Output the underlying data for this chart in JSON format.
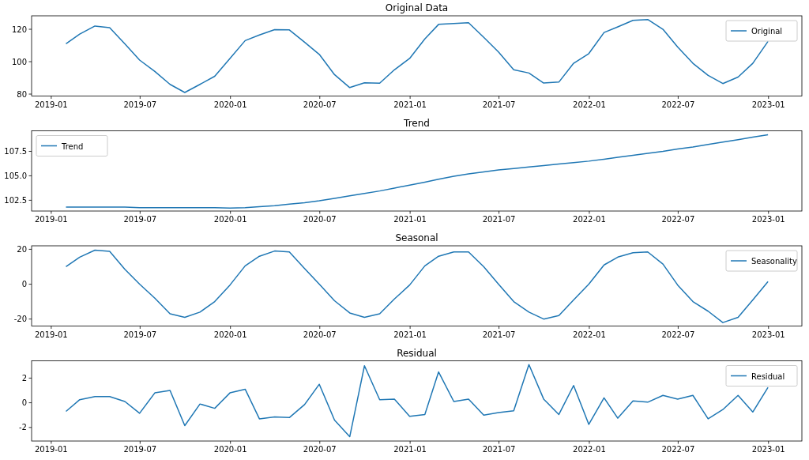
{
  "chart_data": [
    {
      "type": "line",
      "title": "Original Data",
      "x": [
        "2019-01-31",
        "2019-02-28",
        "2019-03-31",
        "2019-04-30",
        "2019-05-31",
        "2019-06-30",
        "2019-07-31",
        "2019-08-31",
        "2019-09-30",
        "2019-10-31",
        "2019-11-30",
        "2019-12-31",
        "2020-01-31",
        "2020-02-29",
        "2020-03-31",
        "2020-04-30",
        "2020-05-31",
        "2020-06-30",
        "2020-07-31",
        "2020-08-31",
        "2020-09-30",
        "2020-10-31",
        "2020-11-30",
        "2020-12-31",
        "2021-01-31",
        "2021-02-28",
        "2021-03-31",
        "2021-04-30",
        "2021-05-31",
        "2021-06-30",
        "2021-07-31",
        "2021-08-31",
        "2021-09-30",
        "2021-10-31",
        "2021-11-30",
        "2021-12-31",
        "2022-01-31",
        "2022-02-28",
        "2022-03-31",
        "2022-04-30",
        "2022-05-31",
        "2022-06-30",
        "2022-07-31",
        "2022-08-31",
        "2022-09-30",
        "2022-10-31",
        "2022-11-30",
        "2022-12-31"
      ],
      "series": [
        {
          "name": "Original",
          "color": "#1f77b4",
          "values": [
            111,
            117,
            122,
            121,
            111,
            101,
            94,
            86,
            81,
            86,
            91,
            102,
            113,
            116.5,
            119.8,
            119.6,
            112,
            104.5,
            92,
            84,
            87,
            86.7,
            95,
            102,
            114,
            123,
            123.5,
            124,
            115,
            106,
            95,
            93,
            86.8,
            87.4,
            99,
            105,
            118,
            121.5,
            125.5,
            126,
            120,
            109,
            99,
            91.5,
            86.5,
            90.5,
            99,
            112.5
          ]
        }
      ],
      "xlim": [
        "2018-11-22",
        "2023-03-10"
      ],
      "xticks": [
        {
          "value": "2019-01",
          "label": "2019-01"
        },
        {
          "value": "2019-07",
          "label": "2019-07"
        },
        {
          "value": "2020-01",
          "label": "2020-01"
        },
        {
          "value": "2020-07",
          "label": "2020-07"
        },
        {
          "value": "2021-01",
          "label": "2021-01"
        },
        {
          "value": "2021-07",
          "label": "2021-07"
        },
        {
          "value": "2022-01",
          "label": "2022-01"
        },
        {
          "value": "2022-07",
          "label": "2022-07"
        },
        {
          "value": "2023-01",
          "label": "2023-01"
        }
      ],
      "ylim": [
        78.8,
        128.3
      ],
      "yticks": [
        80,
        100,
        120
      ],
      "legend": "top right",
      "grid": false
    },
    {
      "type": "line",
      "title": "Trend",
      "x": [
        "2019-01-31",
        "2019-02-28",
        "2019-03-31",
        "2019-04-30",
        "2019-05-31",
        "2019-06-30",
        "2019-07-31",
        "2019-08-31",
        "2019-09-30",
        "2019-10-31",
        "2019-11-30",
        "2019-12-31",
        "2020-01-31",
        "2020-02-29",
        "2020-03-31",
        "2020-04-30",
        "2020-05-31",
        "2020-06-30",
        "2020-07-31",
        "2020-08-31",
        "2020-09-30",
        "2020-10-31",
        "2020-11-30",
        "2020-12-31",
        "2021-01-31",
        "2021-02-28",
        "2021-03-31",
        "2021-04-30",
        "2021-05-31",
        "2021-06-30",
        "2021-07-31",
        "2021-08-31",
        "2021-09-30",
        "2021-10-31",
        "2021-11-30",
        "2021-12-31",
        "2022-01-31",
        "2022-02-28",
        "2022-03-31",
        "2022-04-30",
        "2022-05-31",
        "2022-06-30",
        "2022-07-31",
        "2022-08-31",
        "2022-09-30",
        "2022-10-31",
        "2022-11-30",
        "2022-12-31"
      ],
      "series": [
        {
          "name": "Trend",
          "color": "#1f77b4",
          "values": [
            101.8,
            101.8,
            101.8,
            101.8,
            101.8,
            101.75,
            101.75,
            101.75,
            101.75,
            101.75,
            101.75,
            101.7,
            101.75,
            101.85,
            101.95,
            102.1,
            102.25,
            102.45,
            102.7,
            102.95,
            103.2,
            103.45,
            103.75,
            104.05,
            104.35,
            104.65,
            104.95,
            105.2,
            105.4,
            105.6,
            105.75,
            105.9,
            106.05,
            106.2,
            106.35,
            106.5,
            106.7,
            106.9,
            107.1,
            107.3,
            107.5,
            107.75,
            107.95,
            108.2,
            108.45,
            108.7,
            108.95,
            109.2
          ]
        }
      ],
      "xlim": [
        "2018-11-22",
        "2023-03-10"
      ],
      "xticks": [
        {
          "value": "2019-01",
          "label": "2019-01"
        },
        {
          "value": "2019-07",
          "label": "2019-07"
        },
        {
          "value": "2020-01",
          "label": "2020-01"
        },
        {
          "value": "2020-07",
          "label": "2020-07"
        },
        {
          "value": "2021-01",
          "label": "2021-01"
        },
        {
          "value": "2021-07",
          "label": "2021-07"
        },
        {
          "value": "2022-01",
          "label": "2022-01"
        },
        {
          "value": "2022-07",
          "label": "2022-07"
        },
        {
          "value": "2023-01",
          "label": "2023-01"
        }
      ],
      "ylim": [
        101.4,
        109.6
      ],
      "yticks": [
        {
          "value": 102.5,
          "label": "102.5"
        },
        {
          "value": 105,
          "label": "105.0"
        },
        {
          "value": 107.5,
          "label": "107.5"
        }
      ],
      "legend": "top left",
      "grid": false
    },
    {
      "type": "line",
      "title": "Seasonal",
      "x": [
        "2019-01-31",
        "2019-02-28",
        "2019-03-31",
        "2019-04-30",
        "2019-05-31",
        "2019-06-30",
        "2019-07-31",
        "2019-08-31",
        "2019-09-30",
        "2019-10-31",
        "2019-11-30",
        "2019-12-31",
        "2020-01-31",
        "2020-02-29",
        "2020-03-31",
        "2020-04-30",
        "2020-05-31",
        "2020-06-30",
        "2020-07-31",
        "2020-08-31",
        "2020-09-30",
        "2020-10-31",
        "2020-11-30",
        "2020-12-31",
        "2021-01-31",
        "2021-02-28",
        "2021-03-31",
        "2021-04-30",
        "2021-05-31",
        "2021-06-30",
        "2021-07-31",
        "2021-08-31",
        "2021-09-30",
        "2021-10-31",
        "2021-11-30",
        "2021-12-31",
        "2022-01-31",
        "2022-02-28",
        "2022-03-31",
        "2022-04-30",
        "2022-05-31",
        "2022-06-30",
        "2022-07-31",
        "2022-08-31",
        "2022-09-30",
        "2022-10-31",
        "2022-11-30",
        "2022-12-31"
      ],
      "series": [
        {
          "name": "Seasonality",
          "color": "#1f77b4",
          "values": [
            10,
            15.5,
            19.5,
            18.8,
            8.5,
            0,
            -8,
            -17,
            -19,
            -16,
            -10,
            -0.5,
            10.5,
            16,
            19,
            18.5,
            9,
            0,
            -9.5,
            -16.5,
            -19,
            -17,
            -8.5,
            -0.5,
            10.5,
            16,
            18.5,
            18.5,
            10,
            0,
            -10,
            -16,
            -20,
            -18,
            -9,
            0,
            11,
            15.5,
            18,
            18.5,
            11.5,
            -0.5,
            -10,
            -15.5,
            -22,
            -19,
            -9,
            1.5
          ]
        }
      ],
      "xlim": [
        "2018-11-22",
        "2023-03-10"
      ],
      "xticks": [
        {
          "value": "2019-01",
          "label": "2019-01"
        },
        {
          "value": "2019-07",
          "label": "2019-07"
        },
        {
          "value": "2020-01",
          "label": "2020-01"
        },
        {
          "value": "2020-07",
          "label": "2020-07"
        },
        {
          "value": "2021-01",
          "label": "2021-01"
        },
        {
          "value": "2021-07",
          "label": "2021-07"
        },
        {
          "value": "2022-01",
          "label": "2022-01"
        },
        {
          "value": "2022-07",
          "label": "2022-07"
        },
        {
          "value": "2023-01",
          "label": "2023-01"
        }
      ],
      "ylim": [
        -24,
        22
      ],
      "yticks": [
        -20,
        0,
        20
      ],
      "legend": "top right",
      "grid": false
    },
    {
      "type": "line",
      "title": "Residual",
      "x": [
        "2019-01-31",
        "2019-02-28",
        "2019-03-31",
        "2019-04-30",
        "2019-05-31",
        "2019-06-30",
        "2019-07-31",
        "2019-08-31",
        "2019-09-30",
        "2019-10-31",
        "2019-11-30",
        "2019-12-31",
        "2020-01-31",
        "2020-02-29",
        "2020-03-31",
        "2020-04-30",
        "2020-05-31",
        "2020-06-30",
        "2020-07-31",
        "2020-08-31",
        "2020-09-30",
        "2020-10-31",
        "2020-11-30",
        "2020-12-31",
        "2021-01-31",
        "2021-02-28",
        "2021-03-31",
        "2021-04-30",
        "2021-05-31",
        "2021-06-30",
        "2021-07-31",
        "2021-08-31",
        "2021-09-30",
        "2021-10-31",
        "2021-11-30",
        "2021-12-31",
        "2022-01-31",
        "2022-02-28",
        "2022-03-31",
        "2022-04-30",
        "2022-05-31",
        "2022-06-30",
        "2022-07-31",
        "2022-08-31",
        "2022-09-30",
        "2022-10-31",
        "2022-11-30",
        "2022-12-31"
      ],
      "series": [
        {
          "name": "Residual",
          "color": "#1f77b4",
          "values": [
            -0.7,
            0.25,
            0.5,
            0.5,
            0.1,
            -0.85,
            0.8,
            1.0,
            -1.85,
            -0.1,
            -0.45,
            0.8,
            1.1,
            -1.3,
            -1.15,
            -1.2,
            -0.15,
            1.5,
            -1.4,
            -2.75,
            3.0,
            0.25,
            0.3,
            -1.1,
            -0.95,
            2.5,
            0.1,
            0.3,
            -1.0,
            -0.8,
            -0.65,
            3.1,
            0.3,
            -0.95,
            1.4,
            -1.75,
            0.4,
            -1.25,
            0.15,
            0.05,
            0.6,
            0.3,
            0.6,
            -1.3,
            -0.55,
            0.6,
            -0.75,
            1.25
          ]
        }
      ],
      "xlim": [
        "2018-11-22",
        "2023-03-10"
      ],
      "xticks": [
        {
          "value": "2019-01",
          "label": "2019-01"
        },
        {
          "value": "2019-07",
          "label": "2019-07"
        },
        {
          "value": "2020-01",
          "label": "2020-01"
        },
        {
          "value": "2020-07",
          "label": "2020-07"
        },
        {
          "value": "2021-01",
          "label": "2021-01"
        },
        {
          "value": "2021-07",
          "label": "2021-07"
        },
        {
          "value": "2022-01",
          "label": "2022-01"
        },
        {
          "value": "2022-07",
          "label": "2022-07"
        },
        {
          "value": "2023-01",
          "label": "2023-01"
        }
      ],
      "ylim": [
        -3.1,
        3.4
      ],
      "yticks": [
        -2,
        0,
        2
      ],
      "legend": "top right",
      "grid": false
    }
  ]
}
